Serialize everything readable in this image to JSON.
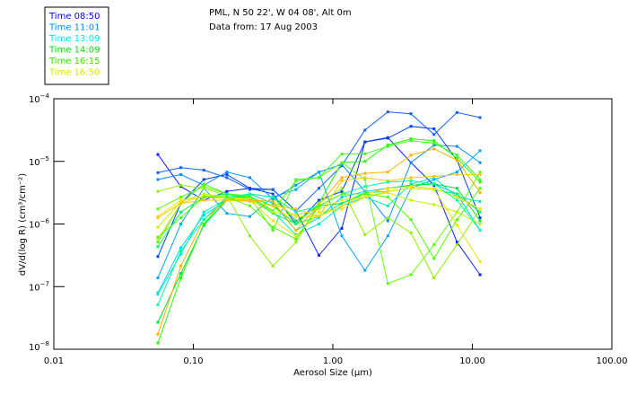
{
  "header": {
    "line1": "PML, N 50 22', W 04 08', Alt 0m",
    "line2": "Data from: 17 Aug 2003"
  },
  "legend": [
    {
      "label": "Time 08:50",
      "color": "#0000ff"
    },
    {
      "label": "Time 11:01",
      "color": "#0088ff"
    },
    {
      "label": "Time 13:09",
      "color": "#00e8e8"
    },
    {
      "label": "Time 14:09",
      "color": "#00e000"
    },
    {
      "label": "Time 16:15",
      "color": "#40e000"
    },
    {
      "label": "Time 16:50",
      "color": "#d8e800"
    }
  ],
  "chart_data": {
    "type": "line",
    "xlabel": "Aerosol Size (μm)",
    "ylabel": "dV/d(log R) (cm³/cm⁻²)",
    "xscale": "log",
    "yscale": "log",
    "xlim": [
      0.01,
      100
    ],
    "ylim": [
      1e-08,
      0.0001
    ],
    "x_ticks": [
      {
        "v": 0.01,
        "label": "0.01"
      },
      {
        "v": 0.1,
        "label": "0.10"
      },
      {
        "v": 1,
        "label": "1.00"
      },
      {
        "v": 10,
        "label": "10.00"
      },
      {
        "v": 100,
        "label": "100.00"
      }
    ],
    "y_ticks": [
      {
        "exp": -4,
        "base": "10",
        "sup": "−4"
      },
      {
        "exp": -5,
        "base": "10",
        "sup": "−5"
      },
      {
        "exp": -6,
        "base": "10",
        "sup": "−6"
      },
      {
        "exp": -7,
        "base": "10",
        "sup": "−7"
      },
      {
        "exp": -8,
        "base": "10",
        "sup": "−8"
      }
    ],
    "legend_position": "top-left outside",
    "x": [
      0.0557,
      0.0814,
      0.119,
      0.174,
      0.254,
      0.372,
      0.544,
      0.795,
      1.16,
      1.7,
      2.48,
      3.63,
      5.31,
      7.76,
      11.35
    ],
    "series_values_are": "log10 of dV/d(log R)",
    "series": [
      {
        "color": "#1020ff",
        "log10_values": [
          -4.89,
          -5.4,
          -5.62,
          -5.48,
          -5.43,
          -5.45,
          -5.79,
          -6.5,
          -6.07,
          -4.69,
          -4.62,
          -5.02,
          -5.38,
          -6.29,
          -6.81
        ]
      },
      {
        "color": "#1060ff",
        "log10_values": [
          -5.18,
          -5.1,
          -5.14,
          -5.26,
          -5.45,
          -5.45,
          -5.79,
          -5.43,
          -5.07,
          -4.5,
          -4.21,
          -4.24,
          -4.57,
          -4.22,
          -4.3
        ]
      },
      {
        "color": "#0040ff",
        "log10_values": [
          -6.52,
          -5.67,
          -5.29,
          -5.21,
          -5.43,
          -5.52,
          -6.0,
          -5.62,
          -5.48,
          -4.69,
          -4.63,
          -4.44,
          -4.48,
          -4.98,
          -5.9
        ]
      },
      {
        "color": "#0090ff",
        "log10_values": [
          -5.29,
          -5.21,
          -5.38,
          -5.17,
          -5.26,
          -5.6,
          -5.38,
          -5.17,
          -5.05,
          -5.48,
          -5.95,
          -5.02,
          -4.74,
          -4.76,
          -5.02
        ]
      },
      {
        "color": "#00a8ff",
        "log10_values": [
          -6.86,
          -6.0,
          -5.43,
          -5.83,
          -5.88,
          -5.57,
          -5.45,
          -5.17,
          -6.19,
          -6.74,
          -6.19,
          -5.43,
          -5.29,
          -5.17,
          -4.83
        ]
      },
      {
        "color": "#00d0ff",
        "log10_values": [
          -7.1,
          -6.38,
          -5.86,
          -5.62,
          -5.52,
          -5.67,
          -6.1,
          -5.9,
          -5.57,
          -5.48,
          -5.43,
          -5.38,
          -5.36,
          -5.52,
          -6.1
        ]
      },
      {
        "color": "#00e8c0",
        "log10_values": [
          -7.12,
          -6.48,
          -5.81,
          -5.6,
          -5.57,
          -5.81,
          -6.17,
          -6.0,
          -5.71,
          -5.57,
          -5.71,
          -5.36,
          -5.26,
          -5.57,
          -5.64
        ]
      },
      {
        "color": "#00e040",
        "log10_values": [
          -7.57,
          -6.79,
          -6.02,
          -5.62,
          -5.52,
          -5.57,
          -5.95,
          -5.71,
          -5.67,
          -5.52,
          -5.43,
          -5.38,
          -5.36,
          -5.43,
          -5.95
        ]
      },
      {
        "color": "#20ff00",
        "log10_values": [
          -7.9,
          -6.86,
          -6.0,
          -5.57,
          -5.57,
          -5.71,
          -6.0,
          -5.67,
          -5.02,
          -5.0,
          -4.74,
          -4.64,
          -4.67,
          -4.95,
          -5.33
        ]
      },
      {
        "color": "#60ff00",
        "log10_values": [
          -5.76,
          -5.57,
          -5.4,
          -5.52,
          -5.55,
          -5.79,
          -5.31,
          -5.26,
          -5.02,
          -5.29,
          -6.95,
          -6.81,
          -6.33,
          -5.81,
          -5.17
        ]
      },
      {
        "color": "#90f000",
        "log10_values": [
          -5.48,
          -5.38,
          -5.43,
          -5.55,
          -6.19,
          -6.67,
          -6.29,
          -5.67,
          -5.43,
          -6.17,
          -5.9,
          -6.14,
          -6.86,
          -6.33,
          -5.76
        ]
      },
      {
        "color": "#40ff20",
        "log10_values": [
          -6.29,
          -5.67,
          -5.36,
          -5.52,
          -5.57,
          -6.1,
          -5.29,
          -5.26,
          -4.88,
          -4.88,
          -4.76,
          -4.67,
          -4.71,
          -4.9,
          -5.29
        ]
      },
      {
        "color": "#00ff60",
        "log10_values": [
          -6.36,
          -5.81,
          -5.57,
          -5.52,
          -5.6,
          -5.83,
          -6.0,
          -5.88,
          -5.67,
          -5.5,
          -5.48,
          -5.43,
          -5.45,
          -5.52,
          -5.81
        ]
      },
      {
        "color": "#c8f000",
        "log10_values": [
          -6.05,
          -5.64,
          -5.52,
          -5.57,
          -5.6,
          -5.81,
          -5.86,
          -5.76,
          -5.62,
          -5.57,
          -5.5,
          -5.62,
          -5.69,
          -5.81,
          -6.0
        ]
      },
      {
        "color": "#e8e800",
        "log10_values": [
          -6.24,
          -5.67,
          -5.55,
          -5.57,
          -5.62,
          -5.95,
          -6.19,
          -5.81,
          -5.76,
          -5.57,
          -5.48,
          -5.43,
          -5.45,
          -6.02,
          -6.6
        ]
      },
      {
        "color": "#ffe000",
        "log10_values": [
          -5.88,
          -5.62,
          -5.57,
          -5.6,
          -5.62,
          -5.64,
          -5.88,
          -5.88,
          -5.71,
          -5.52,
          -5.43,
          -5.4,
          -5.43,
          -5.57,
          -5.76
        ]
      },
      {
        "color": "#ffb000",
        "log10_values": [
          -7.76,
          -6.67,
          -5.93,
          -5.62,
          -5.62,
          -5.64,
          -6.1,
          -5.69,
          -5.26,
          -5.19,
          -5.17,
          -4.9,
          -4.8,
          -4.98,
          -5.5
        ]
      },
      {
        "color": "#ffc800",
        "log10_values": [
          -5.9,
          -5.67,
          -5.62,
          -5.62,
          -5.64,
          -5.71,
          -5.76,
          -5.88,
          -5.31,
          -5.26,
          -5.31,
          -5.26,
          -5.24,
          -5.21,
          -5.21
        ]
      },
      {
        "color": "#00ffa0",
        "log10_values": [
          -7.29,
          -6.43,
          -5.93,
          -5.57,
          -5.52,
          -5.57,
          -5.81,
          -5.71,
          -5.52,
          -5.4,
          -5.33,
          -5.31,
          -5.36,
          -5.62,
          -6.1
        ]
      },
      {
        "color": "#50ff00",
        "log10_values": [
          -6.21,
          -5.9,
          -5.57,
          -5.57,
          -5.71,
          -6.05,
          -6.24,
          -5.71,
          -5.52,
          -5.52,
          -5.57,
          -5.93,
          -6.55,
          -5.93,
          -5.43
        ]
      }
    ]
  }
}
